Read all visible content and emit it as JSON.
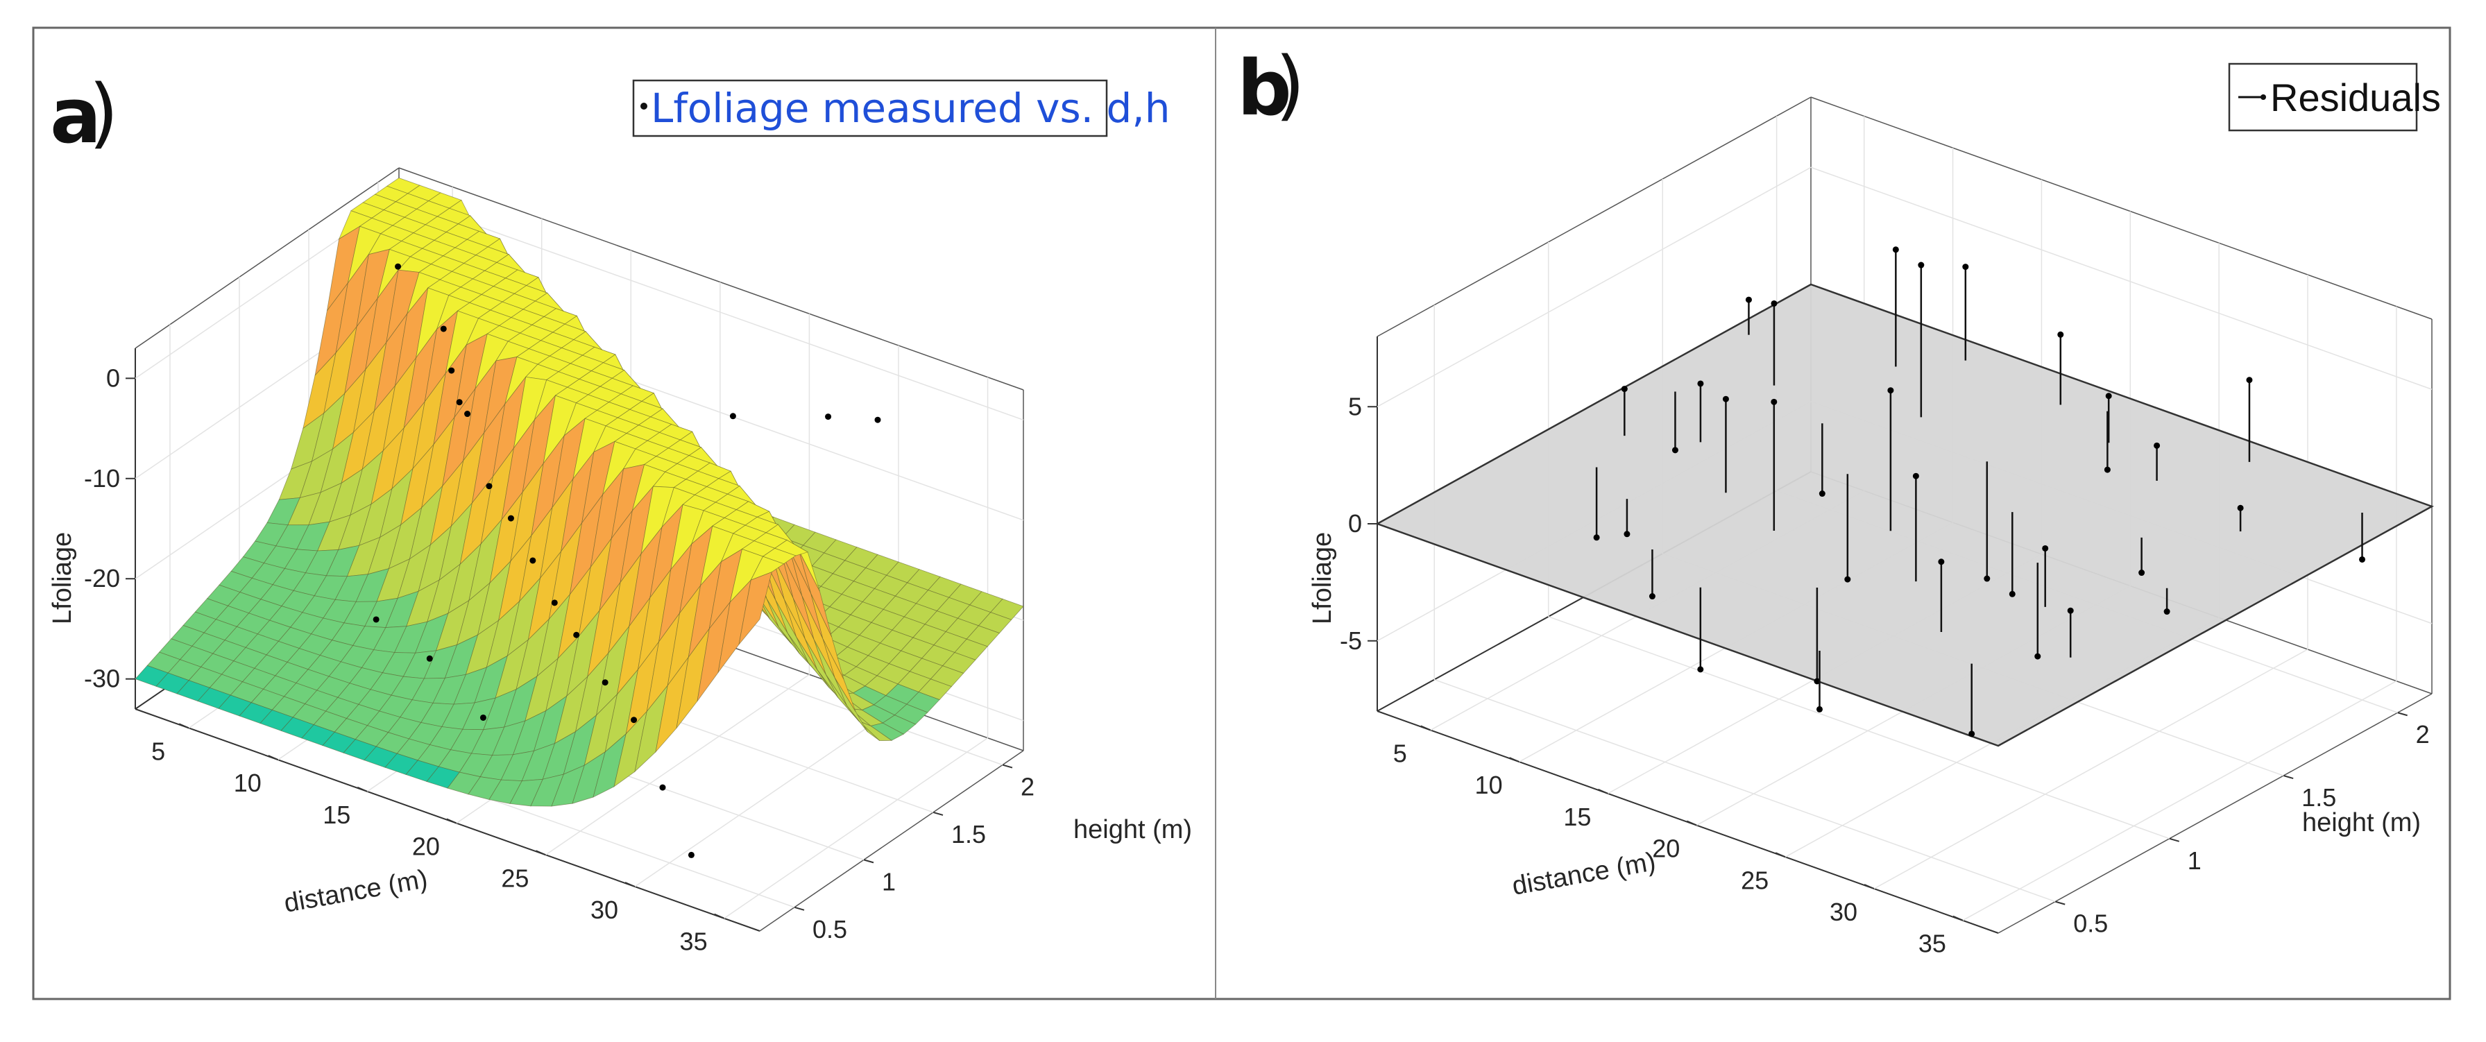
{
  "chart_data": [
    {
      "panel": "a",
      "type": "surface",
      "legend": "Lfoliage measured vs. d,h",
      "legend_color": "#1f4fd8",
      "xlabel": "distance (m)",
      "ylabel": "height (m)",
      "zlabel": "Lfoliage",
      "xticks": [
        "5",
        "10",
        "15",
        "20",
        "25",
        "30",
        "35"
      ],
      "yticks": [
        "0.5",
        "1",
        "1.5",
        "2"
      ],
      "zticks": [
        "0",
        "-10",
        "-20",
        "-30"
      ],
      "xlim": [
        2,
        37
      ],
      "ylim": [
        0.25,
        2.15
      ],
      "zlim": [
        -33,
        3
      ],
      "surface_colormap": [
        "#1fc8a0",
        "#6fd07a",
        "#bcd64c",
        "#f2c232",
        "#f7a446",
        "#f0f032"
      ],
      "measured_points": [
        {
          "d": 3.5,
          "h": 1.95,
          "z": -4
        },
        {
          "d": 8,
          "h": 1.7,
          "z": -5
        },
        {
          "d": 10,
          "h": 1.5,
          "z": -6
        },
        {
          "d": 12,
          "h": 1.3,
          "z": -6
        },
        {
          "d": 14,
          "h": 1.1,
          "z": -4
        },
        {
          "d": 16,
          "h": 1.0,
          "z": -9
        },
        {
          "d": 18,
          "h": 0.9,
          "z": -10
        },
        {
          "d": 20,
          "h": 0.8,
          "z": -12
        },
        {
          "d": 22,
          "h": 0.7,
          "z": -14
        },
        {
          "d": 24,
          "h": 0.6,
          "z": -15
        },
        {
          "d": 26,
          "h": 0.55,
          "z": -18
        },
        {
          "d": 28,
          "h": 0.5,
          "z": -20
        },
        {
          "d": 30,
          "h": 0.45,
          "z": -25
        },
        {
          "d": 32,
          "h": 0.4,
          "z": -30
        },
        {
          "d": 12,
          "h": 0.7,
          "z": -22
        },
        {
          "d": 15,
          "h": 0.7,
          "z": -24
        },
        {
          "d": 18,
          "h": 0.7,
          "z": -28
        },
        {
          "d": 25,
          "h": 1.6,
          "z": -2
        },
        {
          "d": 28,
          "h": 1.9,
          "z": -3
        },
        {
          "d": 30,
          "h": 2.0,
          "z": -3
        }
      ]
    },
    {
      "panel": "b",
      "type": "scatter3d-stem",
      "legend": "Residuals",
      "xlabel": "distance (m)",
      "ylabel": "height (m)",
      "zlabel": "Lfoliage",
      "xticks": [
        "5",
        "10",
        "15",
        "20",
        "25",
        "30",
        "35"
      ],
      "yticks": [
        "0.5",
        "1",
        "1.5",
        "2"
      ],
      "zticks": [
        "5",
        "0",
        "-5"
      ],
      "xlim": [
        2,
        37
      ],
      "ylim": [
        0.25,
        2.15
      ],
      "zlim": [
        -8,
        8
      ],
      "plane_z": 0,
      "plane_color": "#d6d6d6",
      "residuals": [
        {
          "d": 3,
          "h": 1.8,
          "r": 1.5
        },
        {
          "d": 4,
          "h": 1.4,
          "r": -2.5
        },
        {
          "d": 5,
          "h": 1.1,
          "r": 2.0
        },
        {
          "d": 6,
          "h": 0.9,
          "r": -3.0
        },
        {
          "d": 7,
          "h": 1.6,
          "r": 3.5
        },
        {
          "d": 8,
          "h": 1.2,
          "r": 2.5
        },
        {
          "d": 9,
          "h": 0.8,
          "r": -1.5
        },
        {
          "d": 10,
          "h": 1.9,
          "r": 5.0
        },
        {
          "d": 11,
          "h": 1.5,
          "r": -3.0
        },
        {
          "d": 12,
          "h": 1.0,
          "r": 4.0
        },
        {
          "d": 13,
          "h": 0.6,
          "r": -2.0
        },
        {
          "d": 14,
          "h": 1.7,
          "r": 6.5
        },
        {
          "d": 15,
          "h": 1.3,
          "r": -4.5
        },
        {
          "d": 16,
          "h": 0.9,
          "r": 5.5
        },
        {
          "d": 17,
          "h": 0.5,
          "r": -3.5
        },
        {
          "d": 18,
          "h": 2.0,
          "r": 3.0
        },
        {
          "d": 19,
          "h": 1.6,
          "r": -5.0
        },
        {
          "d": 20,
          "h": 1.1,
          "r": 6.0
        },
        {
          "d": 21,
          "h": 0.7,
          "r": -4.0
        },
        {
          "d": 22,
          "h": 1.9,
          "r": 2.0
        },
        {
          "d": 23,
          "h": 1.4,
          "r": -3.5
        },
        {
          "d": 24,
          "h": 0.9,
          "r": 4.5
        },
        {
          "d": 25,
          "h": 0.4,
          "r": -2.5
        },
        {
          "d": 26,
          "h": 1.8,
          "r": 1.5
        },
        {
          "d": 27,
          "h": 1.2,
          "r": -4.0
        },
        {
          "d": 28,
          "h": 0.7,
          "r": 3.0
        },
        {
          "d": 29,
          "h": 1.5,
          "r": -1.5
        },
        {
          "d": 30,
          "h": 1.0,
          "r": 2.5
        },
        {
          "d": 31,
          "h": 0.6,
          "r": -3.0
        },
        {
          "d": 32,
          "h": 1.7,
          "r": 1.0
        },
        {
          "d": 33,
          "h": 1.3,
          "r": -1.0
        },
        {
          "d": 34,
          "h": 0.8,
          "r": 2.0
        },
        {
          "d": 35,
          "h": 2.0,
          "r": -2.0
        },
        {
          "d": 12,
          "h": 2.05,
          "r": 4.0
        },
        {
          "d": 20,
          "h": 2.05,
          "r": -2.5
        },
        {
          "d": 28,
          "h": 2.05,
          "r": 3.5
        }
      ]
    }
  ]
}
